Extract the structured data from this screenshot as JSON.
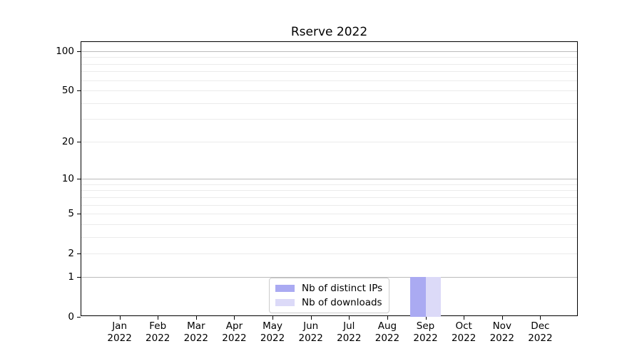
{
  "chart_data": {
    "type": "bar",
    "title": "Rserve 2022",
    "categories": [
      "Jan",
      "Feb",
      "Mar",
      "Apr",
      "May",
      "Jun",
      "Jul",
      "Aug",
      "Sep",
      "Oct",
      "Nov",
      "Dec"
    ],
    "category_year": "2022",
    "series": [
      {
        "name": "Nb of distinct IPs",
        "color": "#aaaaf2",
        "values": [
          0,
          0,
          0,
          0,
          0,
          0,
          0,
          0,
          1,
          0,
          0,
          0
        ]
      },
      {
        "name": "Nb of downloads",
        "color": "#dcdaf8",
        "values": [
          0,
          0,
          0,
          0,
          0,
          0,
          0,
          0,
          1,
          0,
          0,
          0
        ]
      }
    ],
    "xlabel": "",
    "ylabel": "",
    "yscale": "log1p",
    "ylim": [
      0,
      117
    ],
    "yticks": [
      0,
      1,
      2,
      5,
      10,
      20,
      50,
      100
    ],
    "grid": true,
    "grid_major_lines": [
      1,
      10,
      100
    ],
    "grid_minor_lines": [
      2,
      3,
      4,
      5,
      6,
      7,
      8,
      9,
      20,
      30,
      40,
      50,
      60,
      70,
      80,
      90
    ],
    "legend": {
      "position": "lower center"
    },
    "colors": {
      "grid_major": "#bbbbbb",
      "grid_minor": "#ebebeb",
      "axis": "#000000",
      "background": "#ffffff"
    }
  }
}
